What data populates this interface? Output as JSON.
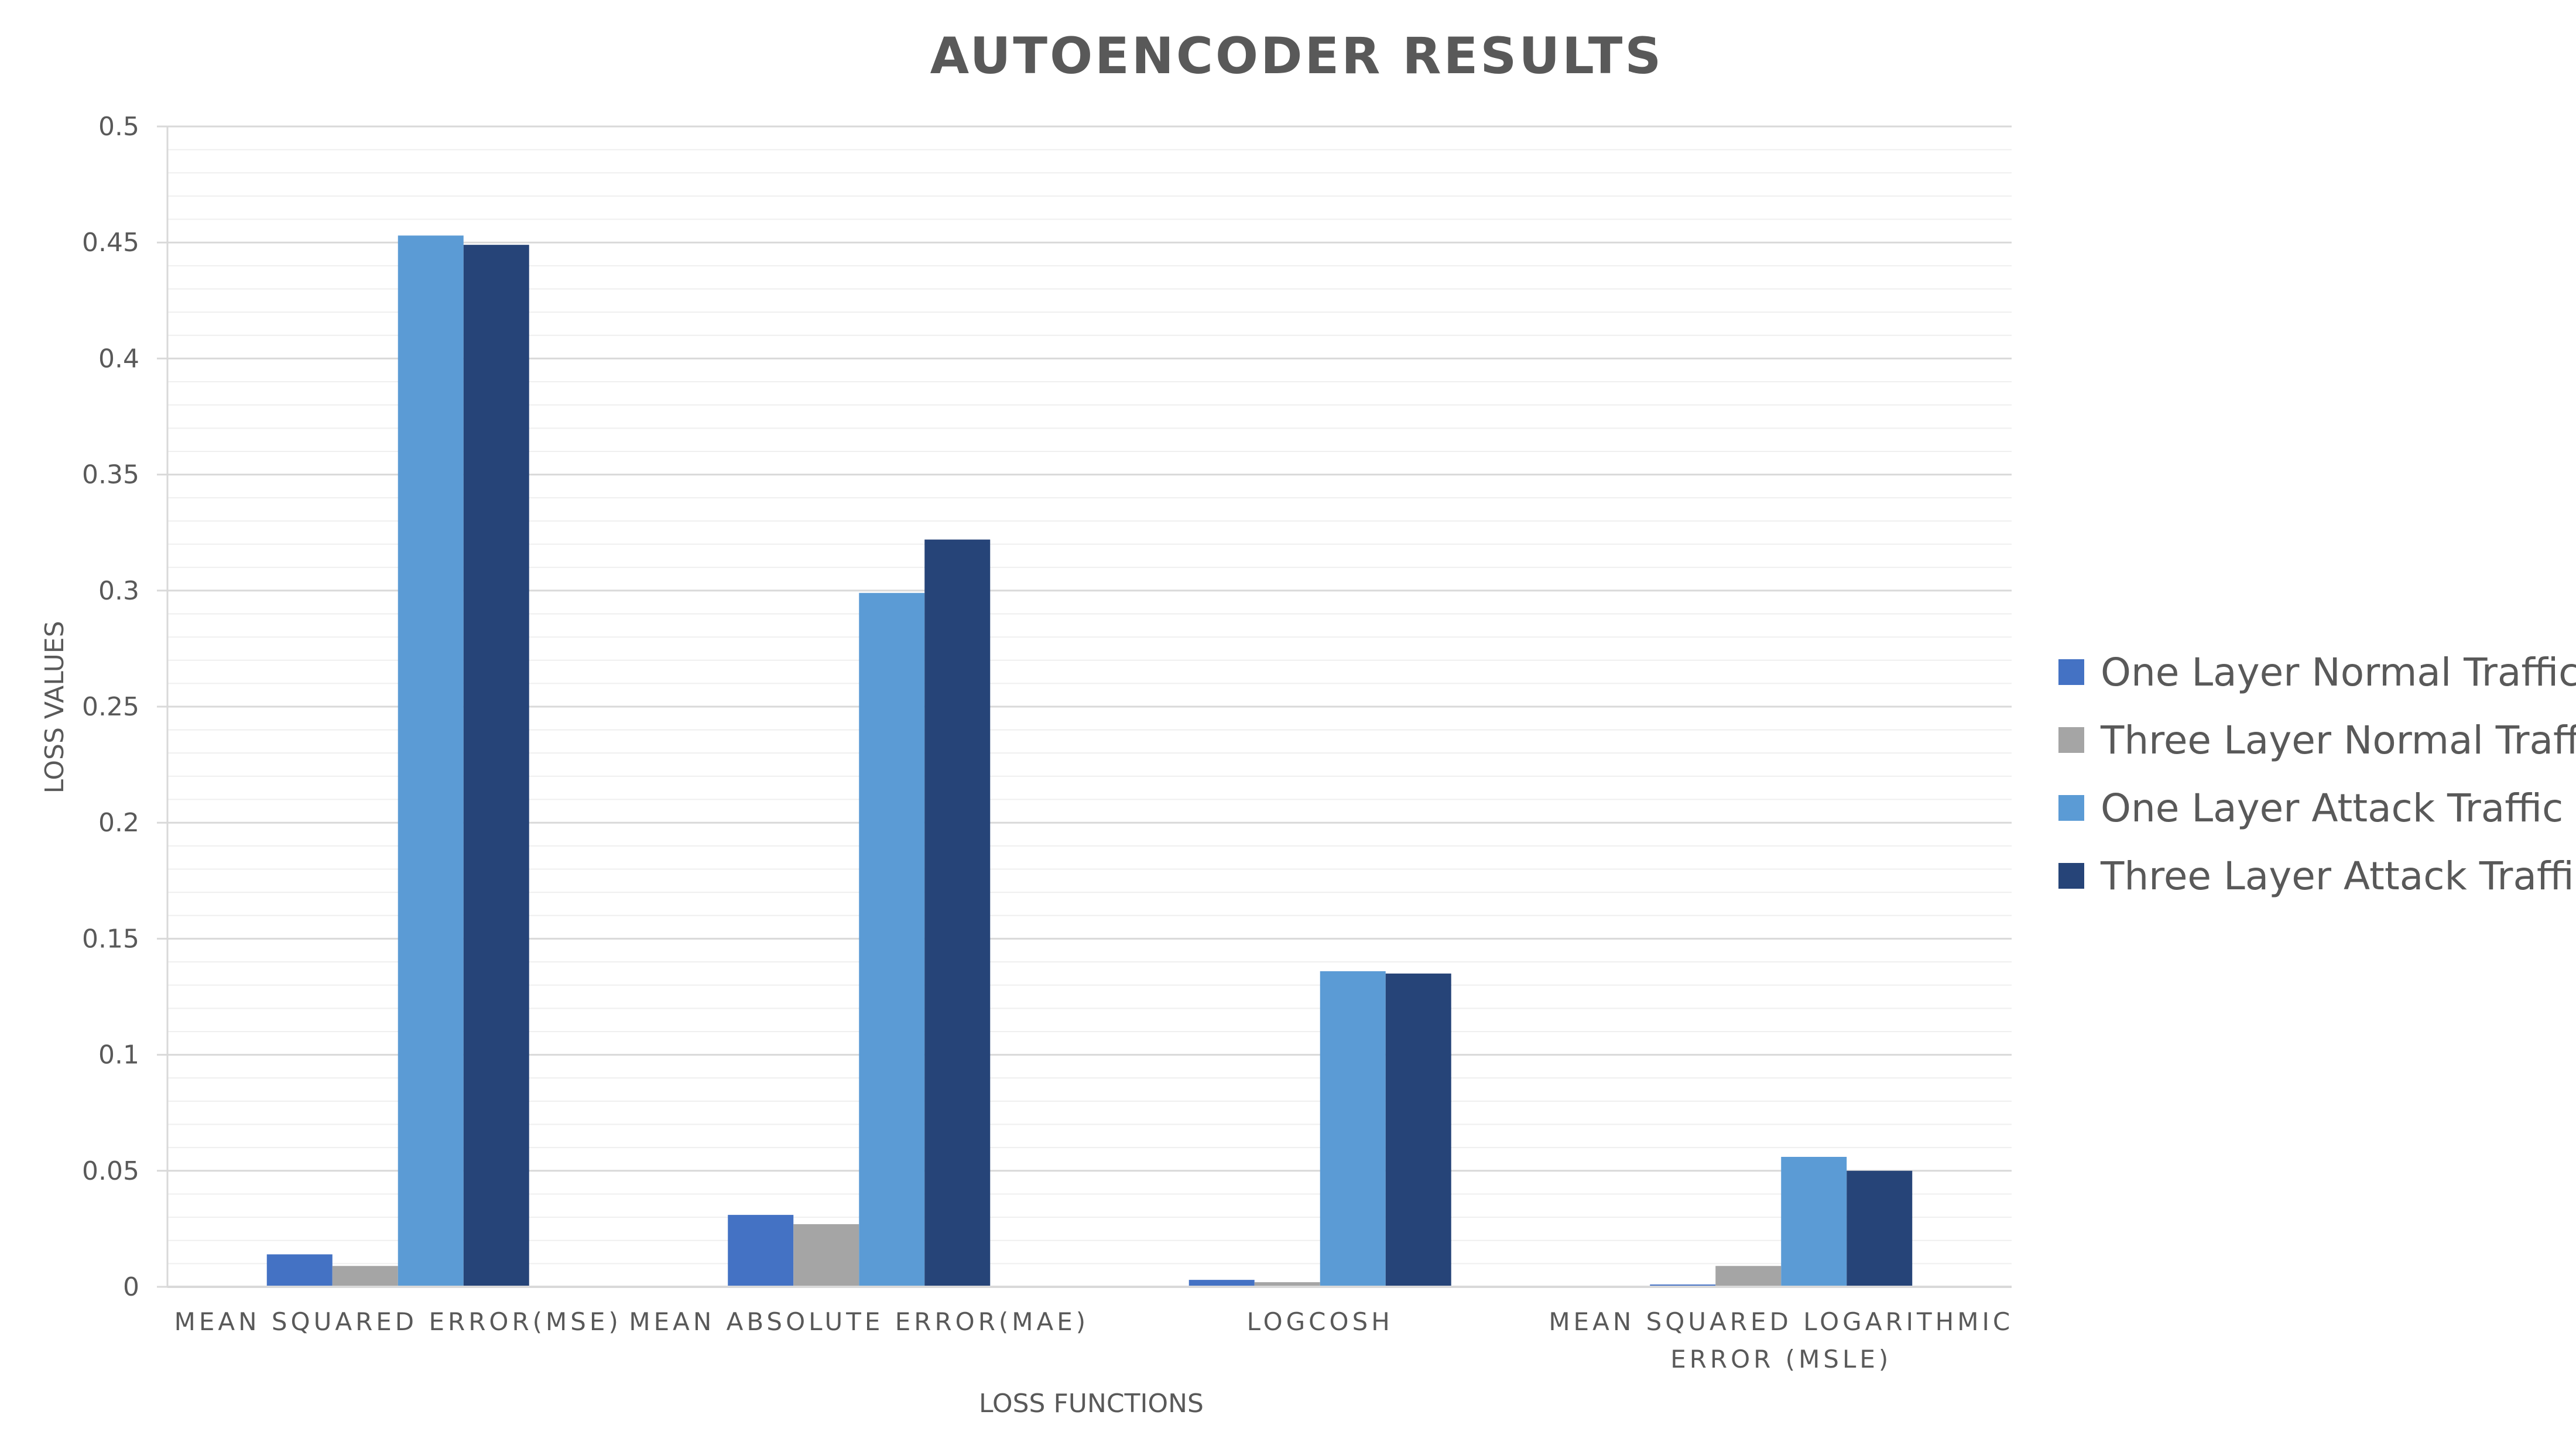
{
  "chart_data": {
    "type": "bar",
    "title": "AUTOENCODER RESULTS",
    "xlabel": "LOSS FUNCTIONS",
    "ylabel": "LOSS VALUES",
    "ylim": [
      0,
      0.5
    ],
    "ytick_step": 0.05,
    "minor_grid_step": 0.01,
    "yticks": [
      "0",
      "0.05",
      "0.1",
      "0.15",
      "0.2",
      "0.25",
      "0.3",
      "0.35",
      "0.4",
      "0.45",
      "0.5"
    ],
    "grid": true,
    "legend_position": "right",
    "categories": [
      [
        "MEAN SQUARED ERROR(MSE)"
      ],
      [
        "MEAN ABSOLUTE ERROR(MAE)"
      ],
      [
        "LOGCOSH"
      ],
      [
        "MEAN SQUARED LOGARITHMIC",
        "ERROR (MSLE)"
      ]
    ],
    "series": [
      {
        "name": "One Layer Normal Traffic",
        "color": "#4472C4",
        "values": [
          0.014,
          0.031,
          0.003,
          0.001
        ]
      },
      {
        "name": "Three Layer Normal Traffic",
        "color": "#A5A5A5",
        "values": [
          0.009,
          0.027,
          0.002,
          0.009
        ]
      },
      {
        "name": "One Layer Attack Traffic",
        "color": "#5B9BD5",
        "values": [
          0.453,
          0.299,
          0.136,
          0.056
        ]
      },
      {
        "name": "Three Layer Attack Traffic",
        "color": "#264478",
        "values": [
          0.449,
          0.322,
          0.135,
          0.05
        ]
      }
    ]
  }
}
